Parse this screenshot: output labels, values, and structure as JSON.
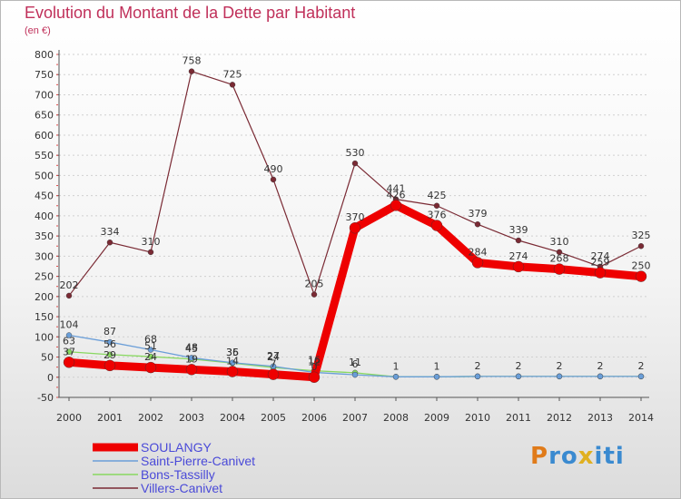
{
  "chart_data": {
    "type": "line",
    "title": "Evolution du Montant de la Dette par Habitant",
    "subtitle": "(en €)",
    "x": [
      "2000",
      "2001",
      "2002",
      "2003",
      "2004",
      "2005",
      "2006",
      "2007",
      "2008",
      "2009",
      "2010",
      "2011",
      "2012",
      "2013",
      "2014"
    ],
    "ylim": [
      -50,
      800
    ],
    "yticks": [
      -50,
      0,
      50,
      100,
      150,
      200,
      250,
      300,
      350,
      400,
      450,
      500,
      550,
      600,
      650,
      700,
      750,
      800
    ],
    "series": [
      {
        "name": "Villers-Canivet",
        "color": "#7a2a34",
        "values": [
          202,
          334,
          310,
          758,
          725,
          490,
          205,
          530,
          441,
          425,
          379,
          339,
          310,
          274,
          325
        ],
        "labels": [
          "202",
          "334",
          "310",
          "758",
          "725",
          "490",
          "205",
          "530",
          "441",
          "425",
          "379",
          "339",
          "310",
          "274",
          "325"
        ]
      },
      {
        "name": "Bons-Tassilly",
        "color": "#88d860",
        "values": [
          63,
          56,
          51,
          45,
          35,
          24,
          16,
          11,
          1,
          1,
          2,
          2,
          2,
          2,
          2
        ],
        "labels": [
          "63",
          "56",
          "51",
          "45",
          "35",
          "24",
          "16",
          "11",
          "1",
          "1",
          "2",
          "2",
          "2",
          "2",
          "2"
        ]
      },
      {
        "name": "Saint-Pierre-Canivet",
        "color": "#6a9ed8",
        "values": [
          104,
          87,
          68,
          48,
          36,
          27,
          12,
          6,
          1,
          1,
          2,
          2,
          2,
          2,
          2
        ],
        "labels": [
          "104",
          "87",
          "68",
          "48",
          "36",
          "27",
          "12",
          "6",
          "",
          "",
          "",
          "",
          "",
          "",
          ""
        ]
      },
      {
        "name": "SOULANGY",
        "color": "#ee0000",
        "values": [
          37,
          29,
          24,
          19,
          14,
          7,
          0,
          370,
          426,
          376,
          284,
          274,
          268,
          259,
          250
        ],
        "labels": [
          "37",
          "29",
          "24",
          "19",
          "14",
          "7",
          "0",
          "370",
          "426",
          "376",
          "284",
          "274",
          "268",
          "259",
          "250"
        ]
      }
    ],
    "legend": [
      "SOULANGY",
      "Saint-Pierre-Canivet",
      "Bons-Tassilly",
      "Villers-Canivet"
    ],
    "legend_position": "bottom-left"
  },
  "brand": {
    "p": "P",
    "r": "r",
    "o": "o",
    "x": "x",
    "i1": "i",
    "t": "t",
    "i2": "i"
  }
}
